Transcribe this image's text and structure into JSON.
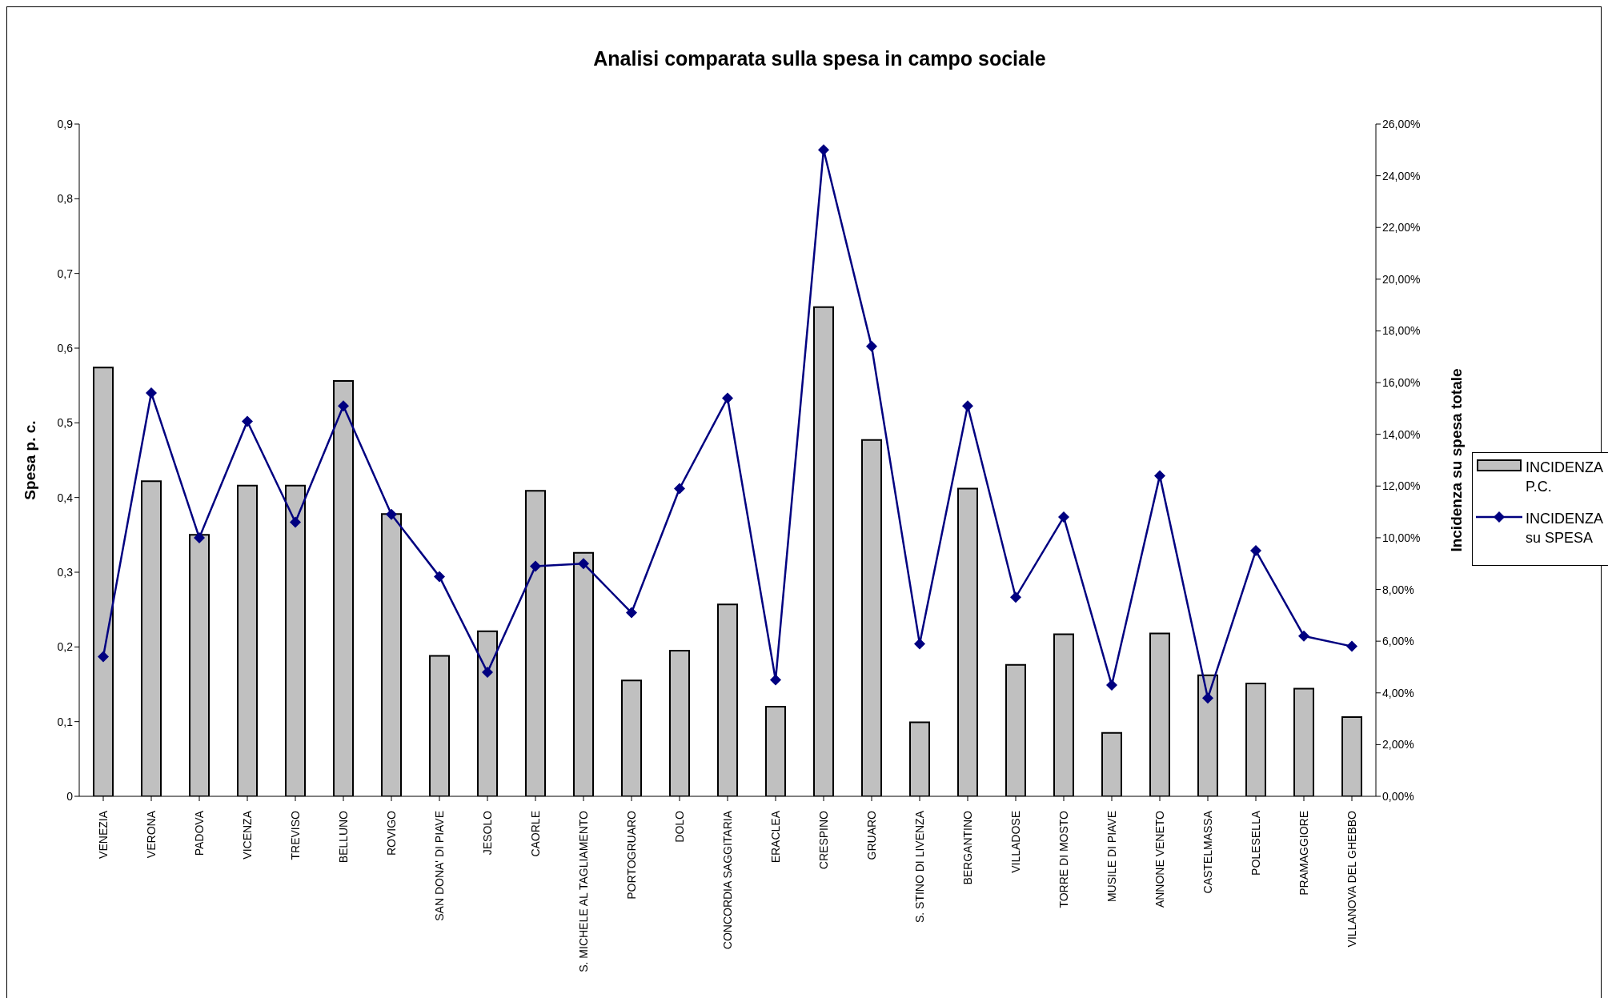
{
  "chart_data": {
    "type": "bar",
    "title": "Analisi comparata sulla spesa in campo sociale",
    "ylabel": "Spesa p. c.",
    "y2label": "Incidenza su spesa totale",
    "categories": [
      "VENEZIA",
      "VERONA",
      "PADOVA",
      "VICENZA",
      "TREVISO",
      "BELLUNO",
      "ROVIGO",
      "SAN DONA' DI PIAVE",
      "JESOLO",
      "CAORLE",
      "S. MICHELE AL TAGLIAMENTO",
      "PORTOGRUARO",
      "DOLO",
      "CONCORDIA SAGGITARIA",
      "ERACLEA",
      "CRESPINO",
      "GRUARO",
      "S. STINO DI LIVENZA",
      "BERGANTINO",
      "VILLADOSE",
      "TORRE DI MOSTO",
      "MUSILE DI PIAVE",
      "ANNONE VENETO",
      "CASTELMASSA",
      "POLESELLA",
      "PRAMAGGIORE",
      "VILLANOVA DEL GHEBBO"
    ],
    "series": [
      {
        "name": "INCIDENZA P.C.",
        "color": "#c0c0c0",
        "values": [
          0.574,
          0.422,
          0.35,
          0.416,
          0.416,
          0.556,
          0.378,
          0.188,
          0.221,
          0.409,
          0.326,
          0.155,
          0.195,
          0.257,
          0.12,
          0.655,
          0.477,
          0.099,
          0.412,
          0.176,
          0.217,
          0.085,
          0.218,
          0.162,
          0.151,
          0.144,
          0.106
        ]
      },
      {
        "name": "INCIDENZA su SPESA",
        "type": "line",
        "axis": "y2",
        "color": "#000080",
        "marker": "diamond",
        "line_style": "solid",
        "values": [
          5.4,
          15.6,
          10.0,
          14.5,
          10.6,
          15.1,
          10.9,
          8.5,
          4.8,
          8.9,
          9.0,
          7.1,
          11.9,
          15.4,
          4.5,
          25.0,
          17.4,
          5.9,
          15.1,
          7.7,
          10.8,
          4.3,
          12.4,
          3.8,
          9.5,
          6.2,
          5.8
        ]
      }
    ],
    "ylim": [
      0,
      0.9
    ],
    "yticks": [
      0,
      {
        "value": 0.1,
        "label": "0,1"
      },
      {
        "value": 0.2,
        "label": "0,2"
      },
      {
        "value": 0.3,
        "label": "0,3"
      },
      {
        "value": 0.4,
        "label": "0,4"
      },
      {
        "value": 0.5,
        "label": "0,5"
      },
      {
        "value": 0.6,
        "label": "0,6"
      },
      {
        "value": 0.7,
        "label": "0,7"
      },
      {
        "value": 0.8,
        "label": "0,8"
      },
      {
        "value": 0.9,
        "label": "0,9"
      }
    ],
    "y2lim": [
      0,
      26
    ],
    "y2ticks": [
      {
        "value": 0,
        "label": "0,00%"
      },
      {
        "value": 2,
        "label": "2,00%"
      },
      {
        "value": 4,
        "label": "4,00%"
      },
      {
        "value": 6,
        "label": "6,00%"
      },
      {
        "value": 8,
        "label": "8,00%"
      },
      {
        "value": 10,
        "label": "10,00%"
      },
      {
        "value": 12,
        "label": "12,00%"
      },
      {
        "value": 14,
        "label": "14,00%"
      },
      {
        "value": 16,
        "label": "16,00%"
      },
      {
        "value": 18,
        "label": "18,00%"
      },
      {
        "value": 20,
        "label": "20,00%"
      },
      {
        "value": 22,
        "label": "22,00%"
      },
      {
        "value": 24,
        "label": "24,00%"
      },
      {
        "value": 26,
        "label": "26,00%"
      }
    ],
    "grid": false,
    "legend": "right"
  }
}
